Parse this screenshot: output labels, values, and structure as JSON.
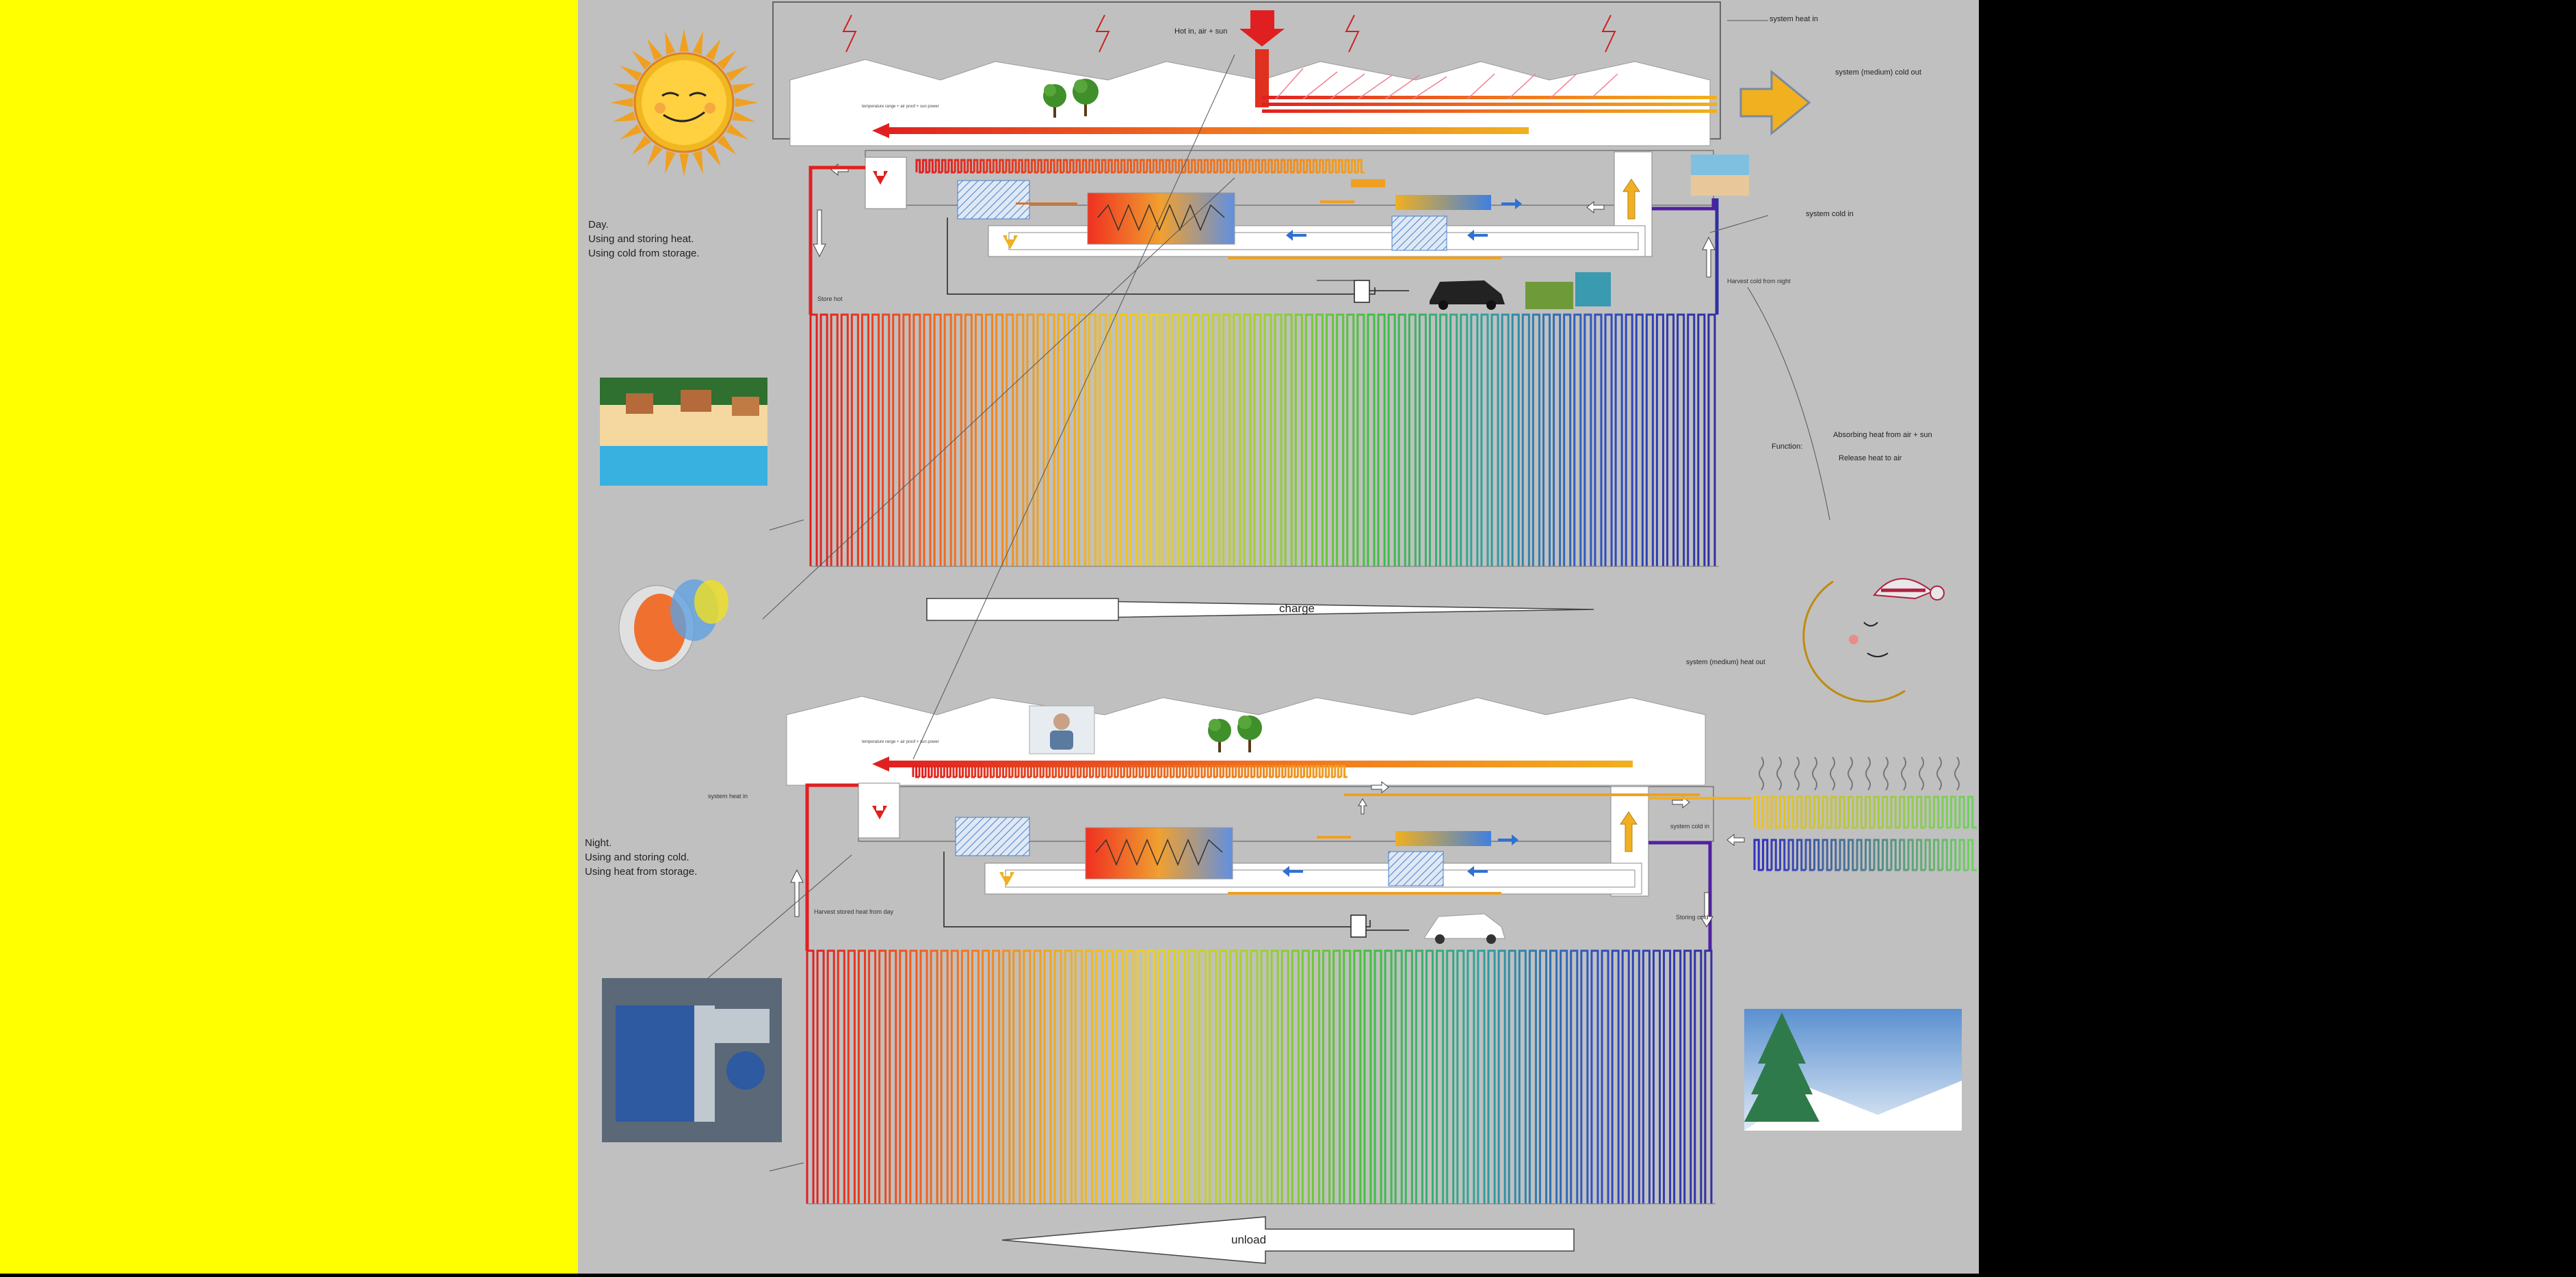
{
  "background": {
    "left_panel": "#ffff00",
    "center_panel": "#c0c0c0",
    "right_panel": "#000000"
  },
  "colors": {
    "hot": "#e02020",
    "warm": "#f0a020",
    "cold": "#3030c0",
    "green": "#40c040",
    "white": "#ffffff",
    "outline": "#444444"
  },
  "spectrum": [
    "#e02020",
    "#f06020",
    "#f0a020",
    "#f0d020",
    "#a0d030",
    "#40c040",
    "#30a0a0",
    "#3050c0",
    "#3030a0"
  ],
  "day": {
    "caption": "Day.\nUsing and storing heat.\nUsing cold from storage.",
    "hot_in": "Hot in, air + sun",
    "system_heat_in": "system heat in",
    "system_medium_cold_out": "system (medium) cold out",
    "system_cold_in": "system cold in",
    "store_hot": "Store hot",
    "harvest_cold_from_night": "Harvest cold from night",
    "function_label": "Function:",
    "function_absorbing": "Absorbing heat from air + sun",
    "function_release": "Release heat to air",
    "charge_label": "charge"
  },
  "night": {
    "caption": "Night.\nUsing and storing cold.\nUsing heat from storage.",
    "system_medium_heat_out": "system (medium) heat out",
    "system_heat_in": "system heat in",
    "system_cold_in": "system cold in",
    "harvest_stored_heat": "Harvest stored heat from day",
    "storing_cold": "Storing cold",
    "unload_label": "unload"
  },
  "icons": [
    "sun-icon",
    "moon-icon",
    "tree-icon",
    "car-icon",
    "lightning-icon",
    "steam-icon"
  ],
  "images": [
    "beach-resort-image",
    "heat-exchanger-3d-image",
    "plate-heat-exchanger-photo",
    "winter-tree-image",
    "presenter-photo",
    "pool-image",
    "crops-image"
  ]
}
